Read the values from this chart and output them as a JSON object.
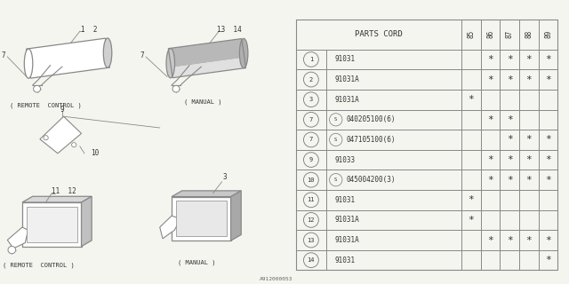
{
  "bg_color": "#f5f5f0",
  "line_color": "#888888",
  "text_color": "#333333",
  "table_header": "PARTS CORD",
  "col_headers": [
    "85",
    "86",
    "87",
    "88",
    "89"
  ],
  "rows": [
    {
      "num": "1",
      "special": false,
      "part": "91031",
      "marks": [
        false,
        true,
        true,
        true,
        true
      ]
    },
    {
      "num": "2",
      "special": false,
      "part": "91031A",
      "marks": [
        false,
        true,
        true,
        true,
        true
      ]
    },
    {
      "num": "3",
      "special": false,
      "part": "91031A",
      "marks": [
        true,
        false,
        false,
        false,
        false
      ]
    },
    {
      "num": "7",
      "special": true,
      "part": "040205100(6)",
      "marks": [
        false,
        true,
        true,
        false,
        false
      ]
    },
    {
      "num": "7",
      "special": true,
      "part": "047105100(6)",
      "marks": [
        false,
        false,
        true,
        true,
        true
      ]
    },
    {
      "num": "9",
      "special": false,
      "part": "91033",
      "marks": [
        false,
        true,
        true,
        true,
        true
      ]
    },
    {
      "num": "10",
      "special": true,
      "part": "045004200(3)",
      "marks": [
        false,
        true,
        true,
        true,
        true
      ]
    },
    {
      "num": "11",
      "special": false,
      "part": "91031",
      "marks": [
        true,
        false,
        false,
        false,
        false
      ]
    },
    {
      "num": "12",
      "special": false,
      "part": "91031A",
      "marks": [
        true,
        false,
        false,
        false,
        false
      ]
    },
    {
      "num": "13",
      "special": false,
      "part": "91031A",
      "marks": [
        false,
        true,
        true,
        true,
        true
      ]
    },
    {
      "num": "14",
      "special": false,
      "part": "91031",
      "marks": [
        false,
        false,
        false,
        false,
        true
      ]
    }
  ],
  "footer": "A912000053",
  "labels": {
    "top_left_caption": "( REMOTE  CONTROL )",
    "top_right_caption": "( MANUAL )",
    "bot_left_caption": "( REMOTE  CONTROL )",
    "bot_right_caption": "( MANUAL )"
  }
}
